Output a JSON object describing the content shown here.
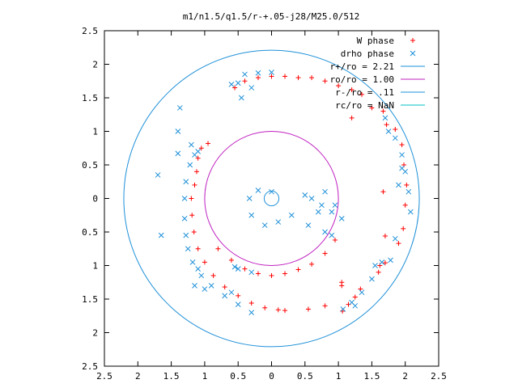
{
  "chart_data": {
    "type": "scatter",
    "title": "m1/n1.5/q1.5/r-+.05-j28/M25.0/512",
    "xlabel": "",
    "ylabel": "",
    "xlim": [
      -2.5,
      2.5
    ],
    "ylim": [
      -2.5,
      2.5
    ],
    "x_tick_labels": [
      "2.5",
      "2",
      "1.5",
      "1",
      "0.5",
      "0",
      "0.5",
      "1",
      "1.5",
      "2",
      "2.5"
    ],
    "y_tick_labels": [
      "2.5",
      "2",
      "1.5",
      "1",
      "0.5",
      "0",
      "0.5",
      "1",
      "1.5",
      "2",
      "2.5"
    ],
    "grid": false,
    "legend_position": "top-right",
    "series": [
      {
        "name": "W phase",
        "kind": "points",
        "marker": "+",
        "color": "#ff0000",
        "points": [
          [
            -1.2,
            0.0
          ],
          [
            -1.19,
            -0.25
          ],
          [
            -1.16,
            -0.5
          ],
          [
            -1.1,
            -0.75
          ],
          [
            -1.0,
            -0.95
          ],
          [
            -0.87,
            -1.15
          ],
          [
            -0.7,
            -1.32
          ],
          [
            -0.5,
            -1.45
          ],
          [
            -0.3,
            -1.56
          ],
          [
            -0.1,
            -1.63
          ],
          [
            0.1,
            -1.66
          ],
          [
            0.2,
            -1.67
          ],
          [
            0.55,
            -1.65
          ],
          [
            -0.8,
            -0.75
          ],
          [
            -0.6,
            -0.92
          ],
          [
            -0.4,
            -1.05
          ],
          [
            -0.2,
            -1.12
          ],
          [
            0.0,
            -1.15
          ],
          [
            0.2,
            -1.12
          ],
          [
            0.4,
            -1.06
          ],
          [
            0.6,
            -0.98
          ],
          [
            0.8,
            -0.82
          ],
          [
            0.95,
            -0.62
          ],
          [
            -1.1,
            0.6
          ],
          [
            -1.05,
            0.75
          ],
          [
            -0.95,
            0.82
          ],
          [
            -1.15,
            0.2
          ],
          [
            -1.12,
            0.4
          ],
          [
            1.06,
            -1.68
          ],
          [
            1.15,
            -1.58
          ],
          [
            1.25,
            -1.47
          ],
          [
            1.33,
            -1.35
          ],
          [
            1.05,
            -1.3
          ],
          [
            1.6,
            -1.1
          ],
          [
            1.7,
            -0.96
          ],
          [
            1.62,
            -1.0
          ],
          [
            1.9,
            -0.67
          ],
          [
            1.97,
            -0.45
          ],
          [
            2.0,
            -0.1
          ],
          [
            2.02,
            0.2
          ],
          [
            1.98,
            0.5
          ],
          [
            1.95,
            0.8
          ],
          [
            1.85,
            1.03
          ],
          [
            1.72,
            1.1
          ],
          [
            1.67,
            1.3
          ],
          [
            1.5,
            1.35
          ],
          [
            1.35,
            1.55
          ],
          [
            1.2,
            1.62
          ],
          [
            1.0,
            1.68
          ],
          [
            0.8,
            1.75
          ],
          [
            0.6,
            1.8
          ],
          [
            0.4,
            1.8
          ],
          [
            0.2,
            1.82
          ],
          [
            0.0,
            1.82
          ],
          [
            -0.2,
            1.8
          ],
          [
            -0.4,
            1.75
          ],
          [
            -0.55,
            1.65
          ],
          [
            1.2,
            1.2
          ],
          [
            1.67,
            0.1
          ],
          [
            1.7,
            -0.56
          ],
          [
            1.05,
            -1.25
          ],
          [
            0.8,
            -1.6
          ]
        ]
      },
      {
        "name": "drho phase",
        "kind": "points",
        "marker": "x",
        "color": "#1e90d8",
        "points": [
          [
            -1.3,
            0.0
          ],
          [
            -1.28,
            0.25
          ],
          [
            -1.22,
            0.5
          ],
          [
            -1.15,
            0.65
          ],
          [
            -1.1,
            0.7
          ],
          [
            -1.3,
            -0.3
          ],
          [
            -1.28,
            -0.55
          ],
          [
            -1.25,
            -0.75
          ],
          [
            -1.18,
            -0.95
          ],
          [
            -1.05,
            -1.15
          ],
          [
            -0.9,
            -1.3
          ],
          [
            -0.7,
            -1.45
          ],
          [
            -0.5,
            -1.58
          ],
          [
            -0.3,
            -1.7
          ],
          [
            -0.6,
            -1.4
          ],
          [
            -1.1,
            -1.05
          ],
          [
            -0.5,
            -1.05
          ],
          [
            -0.3,
            -1.1
          ],
          [
            -0.55,
            -1.02
          ],
          [
            -1.0,
            -1.35
          ],
          [
            -1.15,
            -1.3
          ],
          [
            -1.65,
            -0.55
          ],
          [
            -1.7,
            0.35
          ],
          [
            -1.4,
            0.67
          ],
          [
            -1.37,
            1.35
          ],
          [
            -1.4,
            1.0
          ],
          [
            -1.2,
            0.8
          ],
          [
            -0.4,
            1.85
          ],
          [
            -0.2,
            1.87
          ],
          [
            0.0,
            1.88
          ],
          [
            -0.5,
            1.72
          ],
          [
            -0.45,
            1.5
          ],
          [
            -0.3,
            1.65
          ],
          [
            -0.6,
            1.7
          ],
          [
            1.7,
            1.2
          ],
          [
            1.75,
            1.0
          ],
          [
            1.85,
            0.9
          ],
          [
            1.95,
            0.65
          ],
          [
            2.0,
            0.4
          ],
          [
            2.05,
            0.1
          ],
          [
            2.08,
            -0.2
          ],
          [
            1.95,
            0.45
          ],
          [
            1.9,
            0.2
          ],
          [
            1.85,
            -0.6
          ],
          [
            1.65,
            -0.95
          ],
          [
            1.5,
            -1.2
          ],
          [
            1.35,
            -1.4
          ],
          [
            1.2,
            -1.55
          ],
          [
            1.07,
            -1.65
          ],
          [
            1.25,
            -1.6
          ],
          [
            1.78,
            -0.92
          ],
          [
            1.55,
            -1.0
          ],
          [
            0.8,
            -0.5
          ],
          [
            0.55,
            -0.4
          ],
          [
            0.3,
            -0.25
          ],
          [
            0.1,
            -0.35
          ],
          [
            -0.1,
            -0.4
          ],
          [
            -0.3,
            -0.25
          ],
          [
            -0.33,
            0.0
          ],
          [
            -0.2,
            0.12
          ],
          [
            0.0,
            0.1
          ],
          [
            0.6,
            0.0
          ],
          [
            0.75,
            -0.1
          ],
          [
            0.9,
            -0.2
          ],
          [
            1.05,
            -0.3
          ],
          [
            0.95,
            -0.1
          ],
          [
            0.8,
            0.1
          ],
          [
            0.9,
            -0.55
          ],
          [
            0.5,
            0.05
          ],
          [
            0.7,
            -0.2
          ]
        ]
      },
      {
        "name": "r+/ro = 2.21",
        "kind": "circle",
        "radius": 2.21,
        "color": "#1e90d8"
      },
      {
        "name": "ro/ro = 1.00",
        "kind": "circle",
        "radius": 1.0,
        "color": "#c020c0"
      },
      {
        "name": "r-/ro = .11",
        "kind": "circle",
        "radius": 0.11,
        "color": "#1e90d8"
      },
      {
        "name": "rc/ro = NaN",
        "kind": "circle",
        "radius": null,
        "color": "#00c0c0"
      }
    ]
  }
}
